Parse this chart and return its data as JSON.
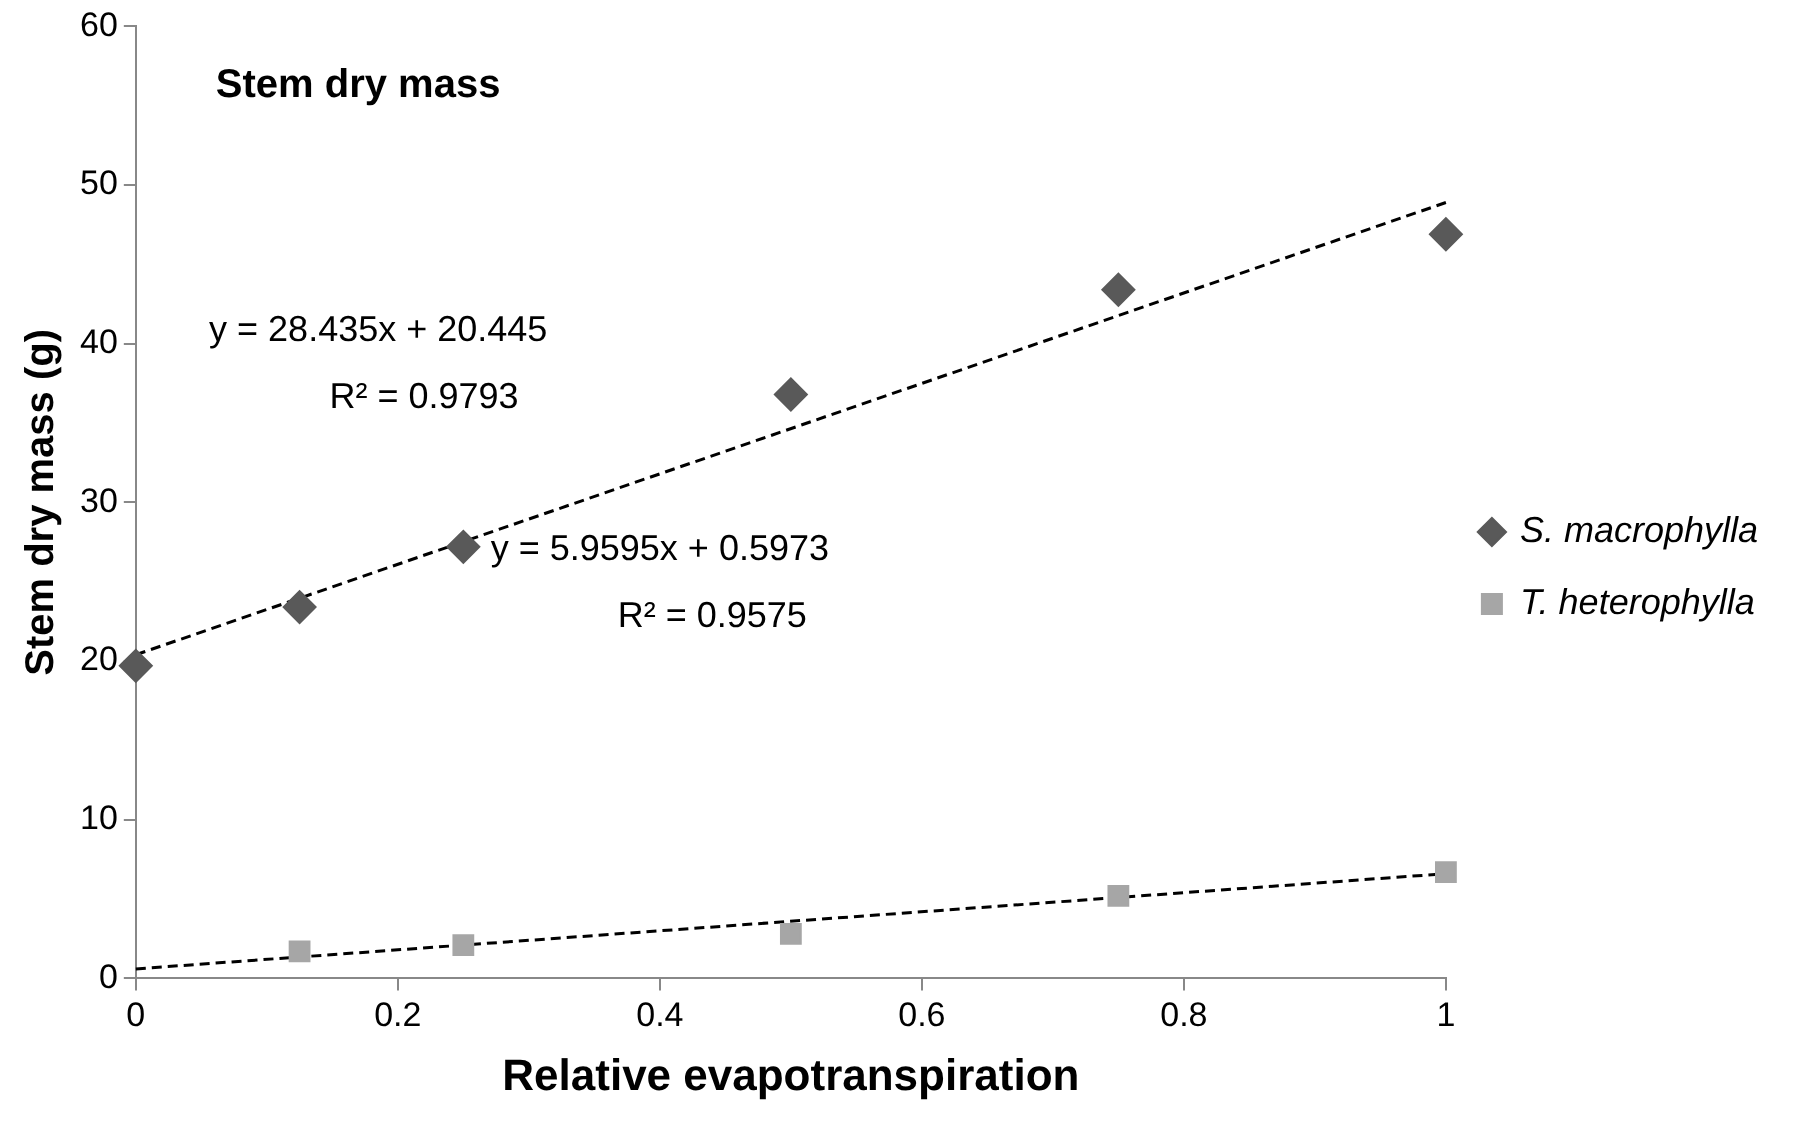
{
  "chart_data": {
    "type": "scatter",
    "title": "Stem dry mass",
    "xlabel": "Relative evapotranspiration",
    "ylabel": "Stem dry mass (g)",
    "xlim": [
      0,
      1
    ],
    "xticks": [
      0,
      0.2,
      0.4,
      0.6,
      0.8,
      1
    ],
    "ylim": [
      0,
      60
    ],
    "yticks": [
      0,
      10,
      20,
      30,
      40,
      50,
      60
    ],
    "grid": false,
    "legend": "right",
    "series": [
      {
        "name": "S. macrophylla",
        "type": "scatter",
        "marker": "diamond",
        "color": "#595959",
        "x": [
          0,
          0.125,
          0.25,
          0.5,
          0.75,
          1
        ],
        "values": [
          19.7,
          23.4,
          27.2,
          36.8,
          43.4,
          46.9
        ]
      },
      {
        "name": "T. heterophylla",
        "type": "scatter",
        "marker": "square",
        "color": "#a6a6a6",
        "x": [
          0.125,
          0.25,
          0.5,
          0.75,
          1
        ],
        "values": [
          1.7,
          2.1,
          2.8,
          5.2,
          6.7
        ]
      },
      {
        "type": "line",
        "marker": "none",
        "line_style": "dashed",
        "color": "#000000",
        "x": [
          0,
          1
        ],
        "values": [
          20.4,
          48.9
        ]
      },
      {
        "type": "line",
        "marker": "none",
        "line_style": "dashed",
        "color": "#000000",
        "x": [
          0,
          1
        ],
        "values": [
          0.6,
          6.6
        ]
      }
    ],
    "annotations": [
      "y = 28.435x + 20.445",
      "R² = 0.9793",
      "y = 5.9595x + 0.5973",
      "R² = 0.9575"
    ]
  }
}
